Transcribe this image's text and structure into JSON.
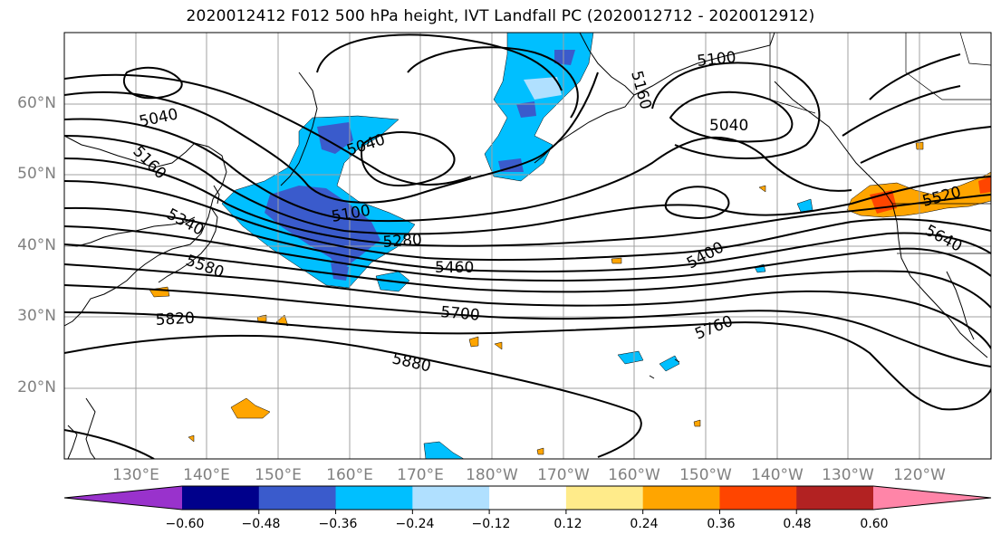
{
  "title": "2020012412 F012 500 hPa height, IVT Landfall PC (2020012712 - 2020012912)",
  "lat_labels": [
    "60°N",
    "50°N",
    "40°N",
    "30°N",
    "20°N"
  ],
  "lon_labels": [
    "130°E",
    "140°E",
    "150°E",
    "160°E",
    "170°E",
    "180°W",
    "170°W",
    "160°W",
    "150°W",
    "140°W",
    "130°W",
    "120°W"
  ],
  "contour_labels": [
    "5100",
    "5040",
    "5160",
    "5040",
    "5040",
    "5160",
    "5100",
    "5340",
    "5280",
    "5460",
    "5580",
    "5700",
    "5820",
    "5880",
    "5400",
    "5760",
    "5520",
    "5640"
  ],
  "colorbar": {
    "colors": [
      "#9932CC",
      "#00008B",
      "#3A5BCC",
      "#00BFFF",
      "#B0E0FF",
      "#FFFFFF",
      "#FFEB8A",
      "#FFA500",
      "#FF4500",
      "#B22222",
      "#FF85A8"
    ],
    "tick_labels": [
      "−0.60",
      "−0.48",
      "−0.36",
      "−0.24",
      "−0.12",
      "0.12",
      "0.24",
      "0.36",
      "0.48",
      "0.60"
    ]
  }
}
